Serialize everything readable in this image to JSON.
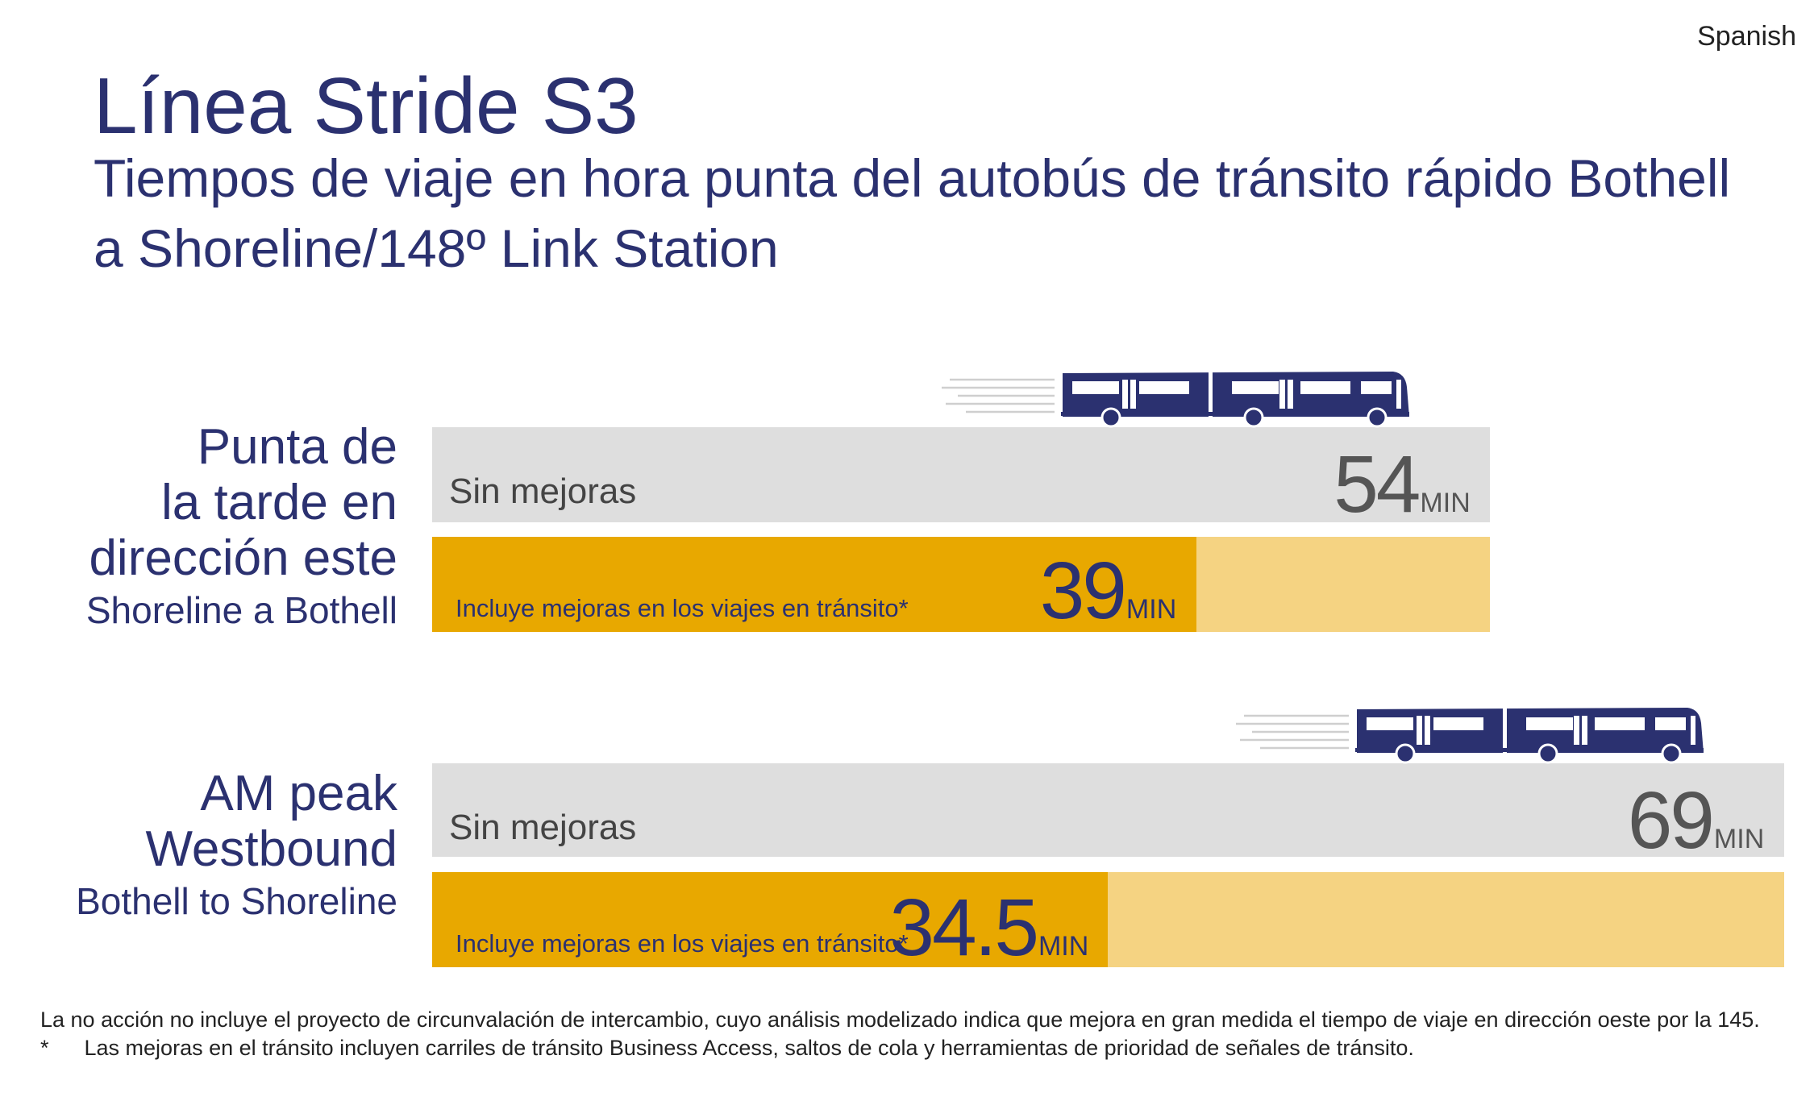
{
  "language_tag": "Spanish",
  "title": "Línea Stride S3",
  "subtitle": "Tiempos de viaje en hora punta del autobús de tránsito rápido Bothell a Shoreline/148º Link Station",
  "colors": {
    "navy": "#2b3170",
    "gray_bar": "#dedede",
    "dark_orange": "#e8a800",
    "light_orange": "#f5d382"
  },
  "bus_icon": "bus-icon",
  "chart_data": {
    "type": "bar",
    "orientation": "horizontal",
    "unit": "MIN",
    "groups": [
      {
        "label_lines": [
          "Punta de",
          "la tarde en",
          "dirección este"
        ],
        "route": "Shoreline a Bothell",
        "bars": [
          {
            "label": "Sin mejoras",
            "value": 54,
            "value_text": "54",
            "unit": "MIN"
          },
          {
            "label": "Incluye mejoras en los viajes en tránsito*",
            "value": 39,
            "value_text": "39",
            "unit": "MIN"
          }
        ]
      },
      {
        "label_lines": [
          "AM peak",
          "Westbound"
        ],
        "route": "Bothell to Shoreline",
        "bars": [
          {
            "label": "Sin mejoras",
            "value": 69,
            "value_text": "69",
            "unit": "MIN"
          },
          {
            "label": "Incluye mejoras en los viajes en tránsito*",
            "value": 34.5,
            "value_text": "34.5",
            "unit": "MIN"
          }
        ]
      }
    ]
  },
  "footnotes": {
    "line1": "La no acción no incluye el proyecto de circunvalación de intercambio, cuyo análisis modelizado indica que mejora en gran medida el tiempo de viaje en dirección oeste por la 145.",
    "line2_marker": "*",
    "line2_text": "Las mejoras en el tránsito incluyen carriles de tránsito Business Access, saltos de cola y herramientas de prioridad de señales de tránsito."
  }
}
